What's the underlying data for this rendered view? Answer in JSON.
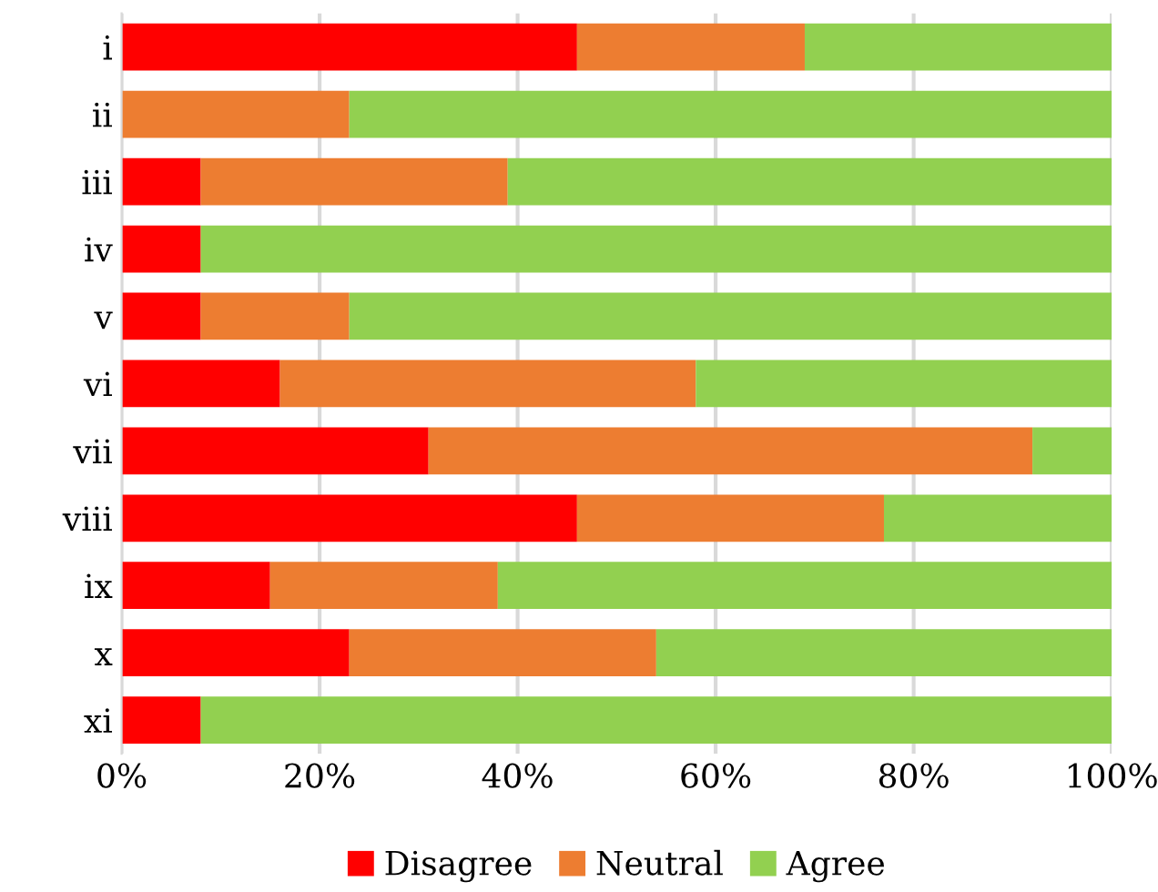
{
  "chart_data": {
    "type": "bar",
    "orientation": "horizontal",
    "stacked": true,
    "categories": [
      "i",
      "ii",
      "iii",
      "iv",
      "v",
      "vi",
      "vii",
      "viii",
      "ix",
      "x",
      "xi"
    ],
    "series": [
      {
        "name": "Disagree",
        "color": "#ff0000",
        "values": [
          46,
          0,
          8,
          8,
          8,
          16,
          31,
          46,
          15,
          23,
          8
        ]
      },
      {
        "name": "Neutral",
        "color": "#ed7d31",
        "values": [
          23,
          23,
          31,
          0,
          15,
          42,
          61,
          31,
          23,
          31,
          0
        ]
      },
      {
        "name": "Agree",
        "color": "#92d050",
        "values": [
          31,
          77,
          61,
          92,
          77,
          42,
          8,
          23,
          62,
          46,
          92
        ]
      }
    ],
    "xlim": [
      0,
      100
    ],
    "xticks": [
      {
        "value": 0,
        "label": "0%"
      },
      {
        "value": 20,
        "label": "20%"
      },
      {
        "value": 40,
        "label": "40%"
      },
      {
        "value": 60,
        "label": "60%"
      },
      {
        "value": 80,
        "label": "80%"
      },
      {
        "value": 100,
        "label": "100%"
      }
    ],
    "grid": "x",
    "legend": "bottom"
  }
}
